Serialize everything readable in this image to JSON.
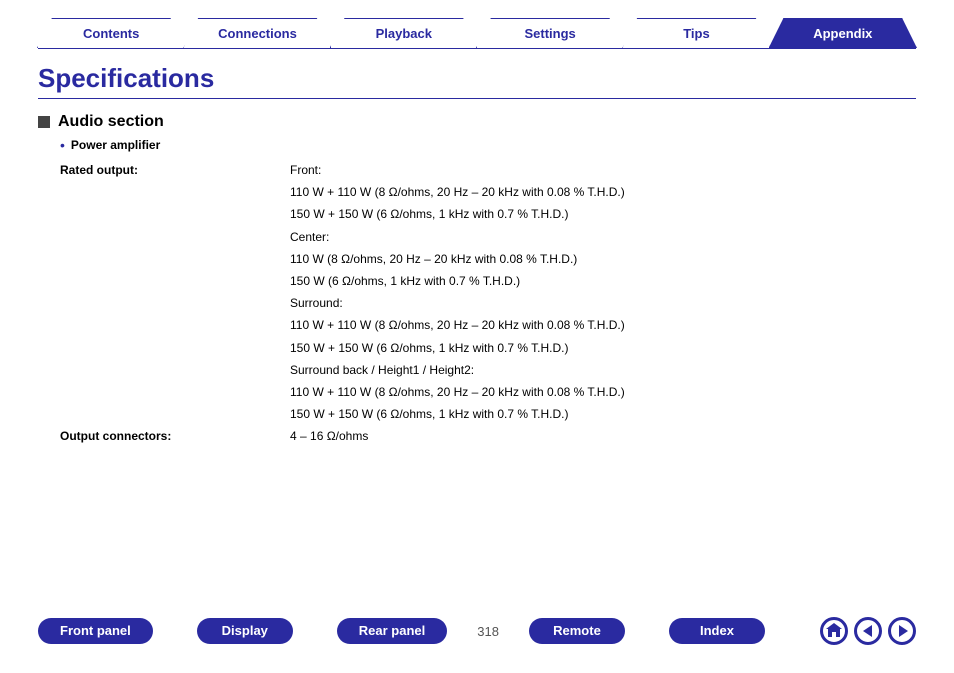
{
  "colors": {
    "primary": "#2a2aa0",
    "text": "#000000",
    "muted": "#555555",
    "bg": "#ffffff"
  },
  "tabs": [
    {
      "label": "Contents",
      "active": false
    },
    {
      "label": "Connections",
      "active": false
    },
    {
      "label": "Playback",
      "active": false
    },
    {
      "label": "Settings",
      "active": false
    },
    {
      "label": "Tips",
      "active": false
    },
    {
      "label": "Appendix",
      "active": true
    }
  ],
  "title": "Specifications",
  "section": {
    "heading": "Audio section",
    "subheading": "Power amplifier",
    "rows": [
      {
        "label": "Rated output:",
        "lines": [
          "Front:",
          "110 W + 110 W (8 Ω/ohms, 20 Hz – 20 kHz with 0.08 % T.H.D.)",
          "150 W + 150 W (6 Ω/ohms, 1 kHz with 0.7 % T.H.D.)",
          "Center:",
          "110 W (8 Ω/ohms, 20 Hz – 20 kHz with 0.08 % T.H.D.)",
          "150 W (6 Ω/ohms, 1 kHz with 0.7 % T.H.D.)",
          "Surround:",
          "110 W + 110 W (8 Ω/ohms, 20 Hz – 20 kHz with 0.08 % T.H.D.)",
          "150 W + 150 W (6 Ω/ohms, 1 kHz with 0.7 % T.H.D.)",
          "Surround back / Height1 / Height2:",
          "110 W + 110 W (8 Ω/ohms, 20 Hz – 20 kHz with 0.08 % T.H.D.)",
          "150 W + 150 W (6 Ω/ohms, 1 kHz with 0.7 % T.H.D.)"
        ]
      },
      {
        "label": "Output connectors:",
        "lines": [
          "4 – 16 Ω/ohms"
        ]
      }
    ]
  },
  "bottom": {
    "buttons": [
      "Front panel",
      "Display",
      "Rear panel"
    ],
    "page_number": "318",
    "buttons2": [
      "Remote",
      "Index"
    ],
    "nav": {
      "home": "home",
      "prev": "prev",
      "next": "next"
    }
  }
}
